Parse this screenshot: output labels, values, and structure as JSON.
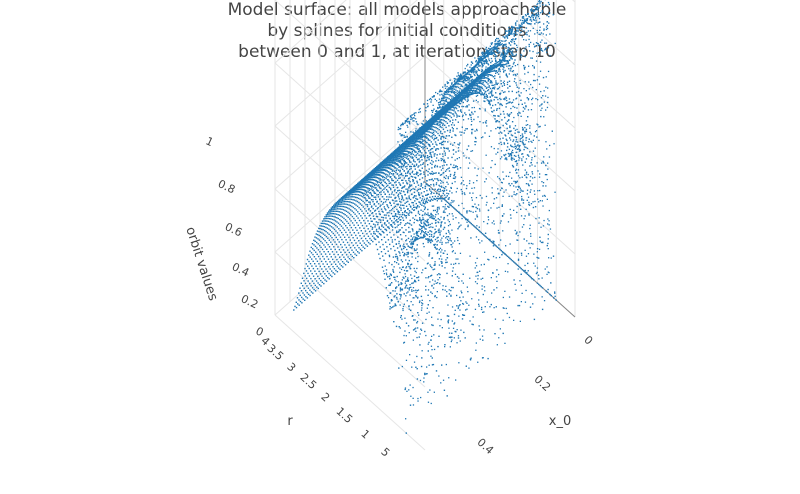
{
  "chart_data": {
    "type": "scatter3d",
    "title_lines": [
      "Model surface: all models approachable",
      "by splines for initial conditions",
      "between 0 and 1, at iteration step 10"
    ],
    "x_axis": {
      "label": "x_0",
      "range": [
        0,
        0.5
      ],
      "ticks": [
        "0",
        "0.2",
        "0.4"
      ]
    },
    "y_axis": {
      "label": "r",
      "range": [
        0.5,
        4
      ],
      "ticks": [
        "4",
        "3.5",
        "3",
        "2.5",
        "2",
        "1.5",
        "1",
        "5"
      ]
    },
    "z_axis": {
      "label": "orbit values",
      "range": [
        0,
        1
      ],
      "ticks": [
        "0",
        "0.2",
        "0.4",
        "0.6",
        "0.8",
        "1"
      ]
    },
    "grid": true,
    "marker_color": "#1f77b4",
    "surface_description_points": [
      {
        "r": 1.0,
        "x_0": 0.0,
        "orbit": 0.0
      },
      {
        "r": 1.0,
        "x_0": 0.5,
        "orbit": 0.0
      },
      {
        "r": 2.0,
        "x_0": 0.25,
        "orbit": 0.5
      },
      {
        "r": 2.5,
        "x_0": 0.25,
        "orbit": 0.6
      },
      {
        "r": 3.0,
        "x_0": 0.25,
        "orbit": 0.66
      },
      {
        "r": 3.5,
        "x_0": 0.25,
        "orbit": 0.85
      },
      {
        "r": 4.0,
        "x_0": 0.25,
        "orbit": 1.0
      }
    ]
  }
}
